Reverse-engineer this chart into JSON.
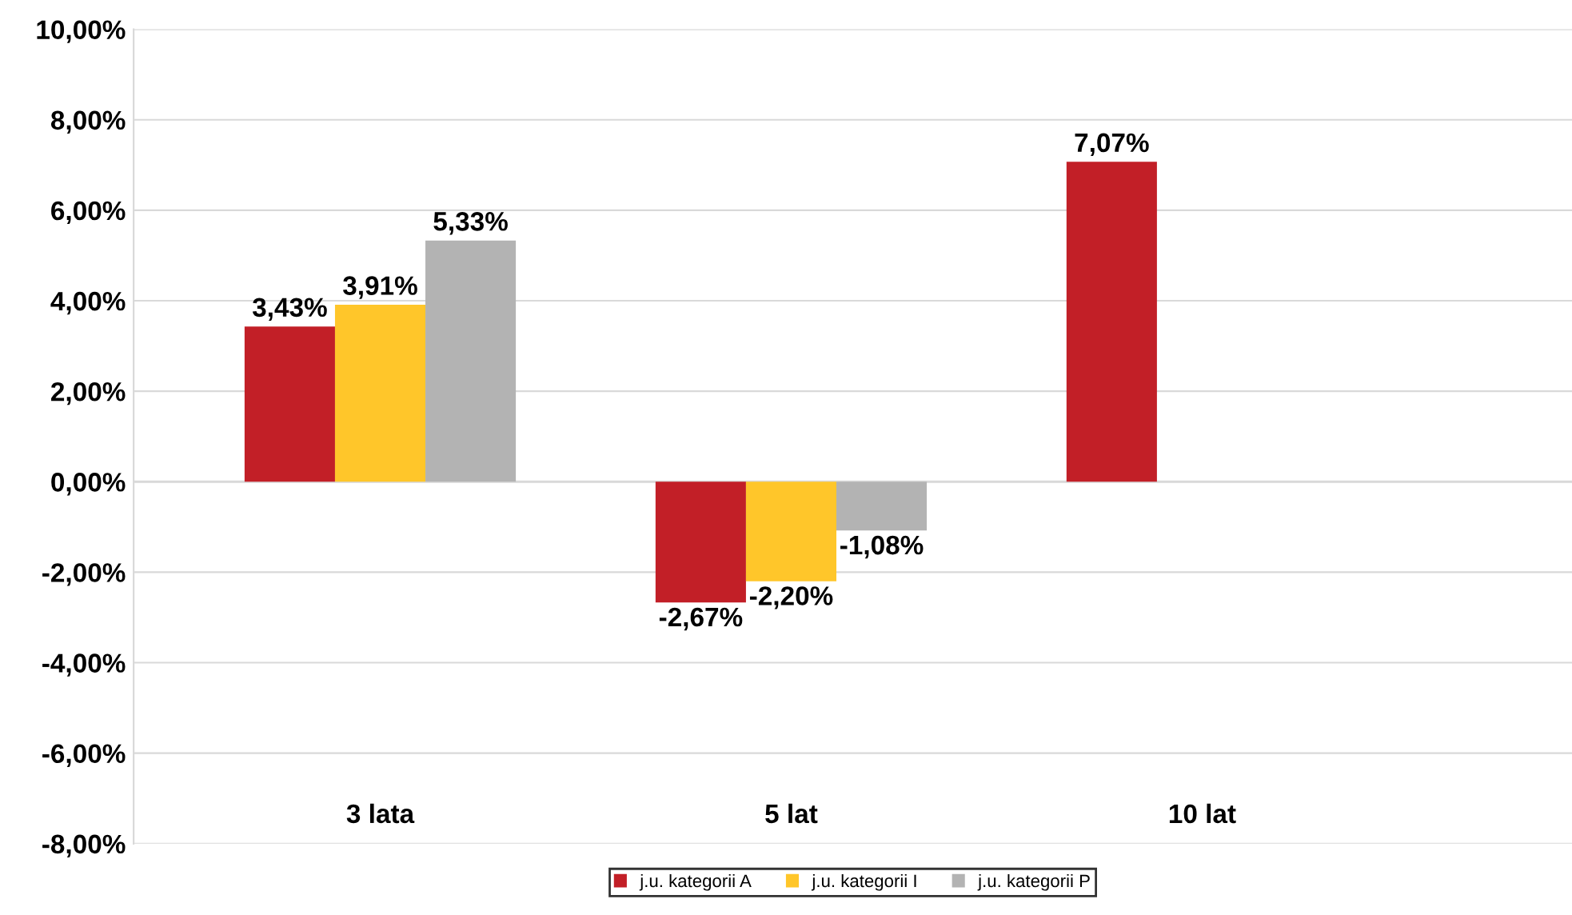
{
  "chart_data": {
    "type": "bar",
    "categories": [
      "3 lata",
      "5 lat",
      "10 lat"
    ],
    "series": [
      {
        "name": "j.u. kategorii A",
        "color": "#c21f27",
        "values": [
          3.43,
          -2.67,
          7.07
        ],
        "value_labels": [
          "3,43%",
          "-2,67%",
          "7,07%"
        ]
      },
      {
        "name": "j.u. kategorii I",
        "color": "#ffc62a",
        "values": [
          3.91,
          -2.2,
          null
        ],
        "value_labels": [
          "3,91%",
          "-2,20%",
          null
        ]
      },
      {
        "name": "j.u. kategorii P",
        "color": "#b3b3b3",
        "values": [
          5.33,
          -1.08,
          null
        ],
        "value_labels": [
          "5,33%",
          "-1,08%",
          null
        ]
      }
    ],
    "ylim": [
      -8,
      10
    ],
    "yticks": [
      {
        "value": -8,
        "label": "-8,00%"
      },
      {
        "value": -6,
        "label": "-6,00%"
      },
      {
        "value": -4,
        "label": "-4,00%"
      },
      {
        "value": -2,
        "label": "-2,00%"
      },
      {
        "value": 0,
        "label": "0,00%"
      },
      {
        "value": 2,
        "label": "2,00%"
      },
      {
        "value": 4,
        "label": "4,00%"
      },
      {
        "value": 6,
        "label": "6,00%"
      },
      {
        "value": 8,
        "label": "8,00%"
      },
      {
        "value": 10,
        "label": "10,00%"
      }
    ],
    "grid": "y",
    "legend": "bottom"
  }
}
